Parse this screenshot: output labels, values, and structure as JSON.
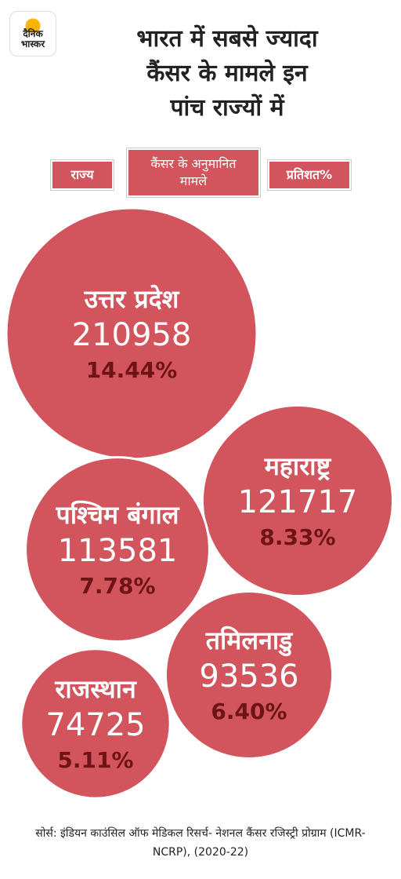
{
  "logo": "दैनिक भास्कर",
  "chart_data": {
    "type": "bubble",
    "title": [
      "भारत में सबसे ज्यादा",
      "कैंसर के मामले इन",
      "पांच राज्यों में"
    ],
    "category_label": "राज्य",
    "categories": [
      "उत्तर प्रदेश",
      "महाराष्ट्र",
      "पश्चिम बंगाल",
      "तमिलनाडु",
      "राजस्थान"
    ],
    "color": "#d2545c",
    "series": [
      {
        "name": "कैंसर के अनुमानित मामले",
        "values": [
          210958,
          121717,
          113581,
          93536,
          74725
        ]
      },
      {
        "name": "प्रतिशत%",
        "values": [
          14.44,
          8.33,
          7.78,
          6.4,
          5.11
        ],
        "value_labels": [
          "14.44%",
          "8.33%",
          "7.78%",
          "6.40%",
          "5.11%"
        ]
      }
    ],
    "source": "सोर्स: इंडियन काउंसिल ऑफ मेडिकल रिसर्च- नेशनल कैंसर रजिस्ट्री प्रोग्राम (ICMR-NCRP), (2020-22)"
  }
}
